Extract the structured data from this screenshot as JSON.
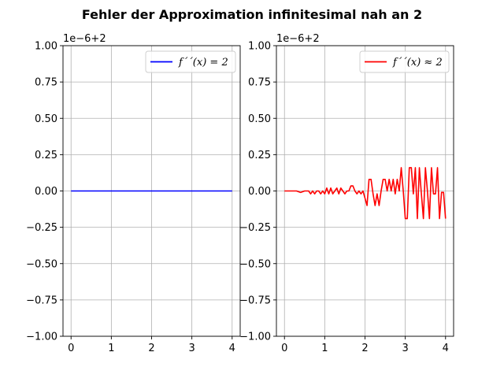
{
  "figure": {
    "title": "Fehler der Approximation infinitesimal nah an 2"
  },
  "chart_data": [
    {
      "type": "line",
      "title": "",
      "xlabel": "",
      "ylabel": "",
      "xlim": [
        -0.2,
        4.2
      ],
      "ylim": [
        -1.0,
        1.0
      ],
      "grid": true,
      "legend_position": "top-right",
      "y_offset_label": "1e−6+2",
      "x_ticks": [
        "0",
        "1",
        "2",
        "3",
        "4"
      ],
      "y_ticks": [
        "1.00",
        "0.75",
        "0.50",
        "0.25",
        "0.00",
        "−0.25",
        "−0.50",
        "−0.75",
        "−1.00"
      ],
      "series": [
        {
          "name": "f´´(x) = 2",
          "color": "#0000ff",
          "x": [
            0,
            4
          ],
          "y": [
            0,
            0
          ]
        }
      ]
    },
    {
      "type": "line",
      "title": "",
      "xlabel": "",
      "ylabel": "",
      "xlim": [
        -0.2,
        4.2
      ],
      "ylim": [
        -1.0,
        1.0
      ],
      "grid": true,
      "legend_position": "top-right",
      "y_offset_label": "1e−6+2",
      "x_ticks": [
        "0",
        "1",
        "2",
        "3",
        "4"
      ],
      "y_ticks": [
        "1.00",
        "0.75",
        "0.50",
        "0.25",
        "0.00",
        "−0.25",
        "−0.50",
        "−0.75",
        "−1.00"
      ],
      "series": [
        {
          "name": "f´´(x) ≈ 2",
          "color": "#ff0000",
          "x": [
            0.0,
            0.1,
            0.2,
            0.3,
            0.4,
            0.5,
            0.6,
            0.65,
            0.7,
            0.75,
            0.8,
            0.85,
            0.9,
            0.95,
            1.0,
            1.05,
            1.1,
            1.15,
            1.2,
            1.25,
            1.3,
            1.35,
            1.4,
            1.45,
            1.5,
            1.55,
            1.6,
            1.65,
            1.7,
            1.75,
            1.8,
            1.85,
            1.9,
            1.95,
            2.0,
            2.05,
            2.1,
            2.15,
            2.2,
            2.25,
            2.3,
            2.35,
            2.4,
            2.45,
            2.5,
            2.55,
            2.6,
            2.65,
            2.7,
            2.75,
            2.8,
            2.85,
            2.9,
            2.95,
            3.0,
            3.05,
            3.1,
            3.15,
            3.2,
            3.25,
            3.3,
            3.35,
            3.4,
            3.45,
            3.5,
            3.55,
            3.6,
            3.65,
            3.7,
            3.75,
            3.8,
            3.85,
            3.9,
            3.95,
            4.0
          ],
          "y": [
            0.0,
            0.0,
            0.0,
            0.0,
            -0.01,
            0.0,
            0.0,
            -0.02,
            0.0,
            -0.02,
            0.0,
            0.0,
            -0.02,
            0.0,
            -0.02,
            0.02,
            -0.02,
            0.02,
            -0.02,
            0.0,
            0.02,
            -0.02,
            0.02,
            0.0,
            -0.02,
            0.0,
            0.0,
            0.035,
            0.035,
            0.0,
            -0.02,
            0.0,
            -0.02,
            0.0,
            -0.05,
            -0.1,
            0.08,
            0.08,
            -0.02,
            -0.1,
            -0.02,
            -0.1,
            0.0,
            0.08,
            0.08,
            0.0,
            0.08,
            0.0,
            0.08,
            -0.02,
            0.08,
            0.0,
            0.16,
            0.0,
            -0.19,
            -0.19,
            0.16,
            0.16,
            -0.02,
            0.16,
            -0.19,
            0.16,
            -0.02,
            -0.19,
            0.16,
            0.0,
            -0.19,
            0.16,
            -0.02,
            -0.02,
            0.16,
            -0.19,
            -0.01,
            -0.01,
            -0.19
          ]
        }
      ]
    }
  ]
}
